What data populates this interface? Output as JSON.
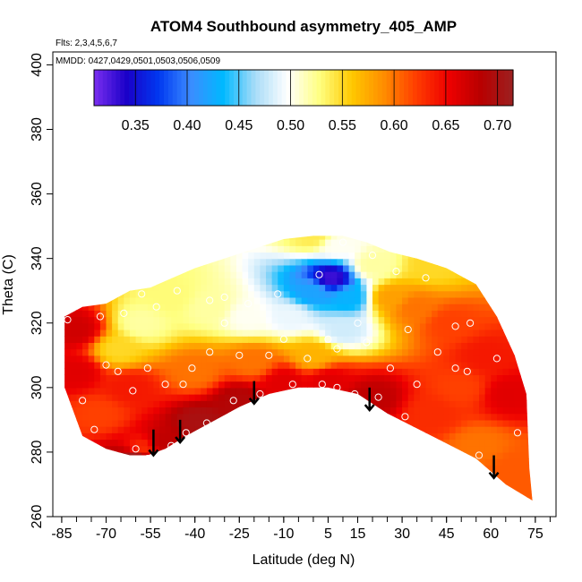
{
  "chart_data": {
    "type": "heatmap",
    "title": "ATOM4 Southbound asymmetry_405_AMP",
    "subtitle_flights": "Flts: 2,3,4,5,6,7",
    "subtitle_dates": "MMDD: 0427,0429,0501,0503,0506,0509",
    "xlabel": "Latitude (deg N)",
    "ylabel": "Theta (C)",
    "xlim": [
      -88,
      82
    ],
    "ylim": [
      260,
      404
    ],
    "x_ticks": [
      -85,
      -70,
      -55,
      -40,
      -25,
      -10,
      5,
      15,
      30,
      45,
      60,
      75
    ],
    "x_tick_labels": [
      "-85",
      "-70",
      "-55",
      "-40",
      "-25",
      "-10",
      "5",
      "15",
      "30",
      "45",
      "60",
      "75"
    ],
    "y_ticks": [
      260,
      280,
      300,
      320,
      340,
      360,
      380,
      400
    ],
    "y_tick_labels": [
      "260",
      "280",
      "300",
      "320",
      "340",
      "360",
      "380",
      "400"
    ],
    "colorbar": {
      "range": [
        0.31,
        0.715
      ],
      "ticks": [
        0.35,
        0.4,
        0.45,
        0.5,
        0.55,
        0.6,
        0.65,
        0.7
      ],
      "tick_labels": [
        "0.35",
        "0.40",
        "0.45",
        "0.50",
        "0.55",
        "0.60",
        "0.65",
        "0.70"
      ],
      "colors": [
        "#7b2ff0",
        "#1a00c8",
        "#0038f0",
        "#3c8cff",
        "#00b8ff",
        "#a8dcf8",
        "#ffffff",
        "#ffff80",
        "#ffc800",
        "#ff8c00",
        "#ff3c00",
        "#ee0000",
        "#b80000",
        "#9c2020"
      ]
    },
    "envelope_top": [
      {
        "lat": -84,
        "theta": 322
      },
      {
        "lat": -78,
        "theta": 325
      },
      {
        "lat": -70,
        "theta": 326
      },
      {
        "lat": -62,
        "theta": 330
      },
      {
        "lat": -55,
        "theta": 331
      },
      {
        "lat": -50,
        "theta": 333
      },
      {
        "lat": -40,
        "theta": 337
      },
      {
        "lat": -30,
        "theta": 340
      },
      {
        "lat": -20,
        "theta": 343
      },
      {
        "lat": -10,
        "theta": 346
      },
      {
        "lat": 0,
        "theta": 347
      },
      {
        "lat": 10,
        "theta": 347
      },
      {
        "lat": 18,
        "theta": 345
      },
      {
        "lat": 26,
        "theta": 342
      },
      {
        "lat": 35,
        "theta": 340
      },
      {
        "lat": 45,
        "theta": 337
      },
      {
        "lat": 55,
        "theta": 332
      },
      {
        "lat": 62,
        "theta": 322
      },
      {
        "lat": 68,
        "theta": 310
      },
      {
        "lat": 72,
        "theta": 298
      },
      {
        "lat": 73,
        "theta": 275
      },
      {
        "lat": 74,
        "theta": 265
      }
    ],
    "envelope_bottom": [
      {
        "lat": 74,
        "theta": 265
      },
      {
        "lat": 65,
        "theta": 270
      },
      {
        "lat": 55,
        "theta": 278
      },
      {
        "lat": 40,
        "theta": 285
      },
      {
        "lat": 25,
        "theta": 292
      },
      {
        "lat": 15,
        "theta": 298
      },
      {
        "lat": 5,
        "theta": 300
      },
      {
        "lat": -5,
        "theta": 300
      },
      {
        "lat": -15,
        "theta": 298
      },
      {
        "lat": -25,
        "theta": 294
      },
      {
        "lat": -35,
        "theta": 289
      },
      {
        "lat": -43,
        "theta": 285
      },
      {
        "lat": -50,
        "theta": 281
      },
      {
        "lat": -56,
        "theta": 279
      },
      {
        "lat": -62,
        "theta": 279
      },
      {
        "lat": -70,
        "theta": 281
      },
      {
        "lat": -78,
        "theta": 285
      },
      {
        "lat": -84,
        "theta": 300
      },
      {
        "lat": -84,
        "theta": 322
      }
    ],
    "field_anchors": [
      {
        "lat": 0,
        "theta": 347,
        "value": 0.54
      },
      {
        "lat": 8,
        "theta": 344,
        "value": 0.5
      },
      {
        "lat": 6,
        "theta": 334,
        "value": 0.33
      },
      {
        "lat": 0,
        "theta": 330,
        "value": 0.42
      },
      {
        "lat": 12,
        "theta": 328,
        "value": 0.43
      },
      {
        "lat": -8,
        "theta": 322,
        "value": 0.49
      },
      {
        "lat": 10,
        "theta": 318,
        "value": 0.48
      },
      {
        "lat": -22,
        "theta": 322,
        "value": 0.5
      },
      {
        "lat": -35,
        "theta": 325,
        "value": 0.52
      },
      {
        "lat": -48,
        "theta": 328,
        "value": 0.53
      },
      {
        "lat": -58,
        "theta": 320,
        "value": 0.52
      },
      {
        "lat": -66,
        "theta": 312,
        "value": 0.55
      },
      {
        "lat": 20,
        "theta": 338,
        "value": 0.52
      },
      {
        "lat": 26,
        "theta": 328,
        "value": 0.58
      },
      {
        "lat": 34,
        "theta": 325,
        "value": 0.6
      },
      {
        "lat": 46,
        "theta": 320,
        "value": 0.62
      },
      {
        "lat": 58,
        "theta": 310,
        "value": 0.64
      },
      {
        "lat": 66,
        "theta": 298,
        "value": 0.66
      },
      {
        "lat": 50,
        "theta": 300,
        "value": 0.62
      },
      {
        "lat": 40,
        "theta": 292,
        "value": 0.63
      },
      {
        "lat": 56,
        "theta": 282,
        "value": 0.6
      },
      {
        "lat": 68,
        "theta": 275,
        "value": 0.61
      },
      {
        "lat": 20,
        "theta": 297,
        "value": 0.68
      },
      {
        "lat": 5,
        "theta": 302,
        "value": 0.66
      },
      {
        "lat": -10,
        "theta": 302,
        "value": 0.66
      },
      {
        "lat": -25,
        "theta": 296,
        "value": 0.69
      },
      {
        "lat": -38,
        "theta": 289,
        "value": 0.7
      },
      {
        "lat": -50,
        "theta": 283,
        "value": 0.68
      },
      {
        "lat": -58,
        "theta": 281,
        "value": 0.63
      },
      {
        "lat": -20,
        "theta": 308,
        "value": 0.6
      },
      {
        "lat": 0,
        "theta": 310,
        "value": 0.57
      },
      {
        "lat": -40,
        "theta": 305,
        "value": 0.6
      },
      {
        "lat": -62,
        "theta": 300,
        "value": 0.64
      },
      {
        "lat": -72,
        "theta": 292,
        "value": 0.62
      },
      {
        "lat": -80,
        "theta": 305,
        "value": 0.66
      },
      {
        "lat": -80,
        "theta": 318,
        "value": 0.67
      },
      {
        "lat": -60,
        "theta": 278,
        "value": 0.72
      },
      {
        "lat": 40,
        "theta": 338,
        "value": 0.55
      }
    ],
    "sample_points": [
      {
        "lat": -83,
        "theta": 321
      },
      {
        "lat": -72,
        "theta": 322
      },
      {
        "lat": -64,
        "theta": 323
      },
      {
        "lat": -58,
        "theta": 329
      },
      {
        "lat": -53,
        "theta": 325
      },
      {
        "lat": -46,
        "theta": 330
      },
      {
        "lat": -35,
        "theta": 327
      },
      {
        "lat": -30,
        "theta": 328
      },
      {
        "lat": -22,
        "theta": 326
      },
      {
        "lat": -12,
        "theta": 329
      },
      {
        "lat": 2,
        "theta": 335
      },
      {
        "lat": 10,
        "theta": 345
      },
      {
        "lat": 20,
        "theta": 341
      },
      {
        "lat": 28,
        "theta": 336
      },
      {
        "lat": 38,
        "theta": 334
      },
      {
        "lat": 48,
        "theta": 319
      },
      {
        "lat": 53,
        "theta": 320
      },
      {
        "lat": 62,
        "theta": 309
      },
      {
        "lat": -78,
        "theta": 296
      },
      {
        "lat": -70,
        "theta": 307
      },
      {
        "lat": -66,
        "theta": 305
      },
      {
        "lat": -61,
        "theta": 299
      },
      {
        "lat": -50,
        "theta": 301
      },
      {
        "lat": -44,
        "theta": 301
      },
      {
        "lat": -41,
        "theta": 306
      },
      {
        "lat": -35,
        "theta": 311
      },
      {
        "lat": -25,
        "theta": 310
      },
      {
        "lat": -15,
        "theta": 310
      },
      {
        "lat": -2,
        "theta": 309
      },
      {
        "lat": 8,
        "theta": 312
      },
      {
        "lat": 18,
        "theta": 314
      },
      {
        "lat": 26,
        "theta": 306
      },
      {
        "lat": 35,
        "theta": 301
      },
      {
        "lat": 42,
        "theta": 311
      },
      {
        "lat": 48,
        "theta": 306
      },
      {
        "lat": 52,
        "theta": 305
      },
      {
        "lat": -74,
        "theta": 287
      },
      {
        "lat": -60,
        "theta": 281
      },
      {
        "lat": -56,
        "theta": 278
      },
      {
        "lat": -48,
        "theta": 282
      },
      {
        "lat": -43,
        "theta": 286
      },
      {
        "lat": -36,
        "theta": 289
      },
      {
        "lat": -27,
        "theta": 296
      },
      {
        "lat": -18,
        "theta": 298
      },
      {
        "lat": -7,
        "theta": 301
      },
      {
        "lat": 3,
        "theta": 301
      },
      {
        "lat": 8,
        "theta": 300
      },
      {
        "lat": 14,
        "theta": 298
      },
      {
        "lat": 22,
        "theta": 297
      },
      {
        "lat": 31,
        "theta": 291
      },
      {
        "lat": 45,
        "theta": 279
      },
      {
        "lat": 56,
        "theta": 279
      },
      {
        "lat": 69,
        "theta": 286
      },
      {
        "lat": -10,
        "theta": 315
      },
      {
        "lat": 5,
        "theta": 315
      },
      {
        "lat": 15,
        "theta": 320
      },
      {
        "lat": -30,
        "theta": 320
      },
      {
        "lat": -56,
        "theta": 306
      },
      {
        "lat": 32,
        "theta": 318
      }
    ],
    "arrows": [
      {
        "lat": -54,
        "theta_top": 287,
        "theta_tip": 279
      },
      {
        "lat": -45,
        "theta_top": 290,
        "theta_tip": 283
      },
      {
        "lat": -20,
        "theta_top": 302,
        "theta_tip": 295
      },
      {
        "lat": 19,
        "theta_top": 300,
        "theta_tip": 293
      },
      {
        "lat": 61,
        "theta_top": 279,
        "theta_tip": 272
      }
    ]
  }
}
